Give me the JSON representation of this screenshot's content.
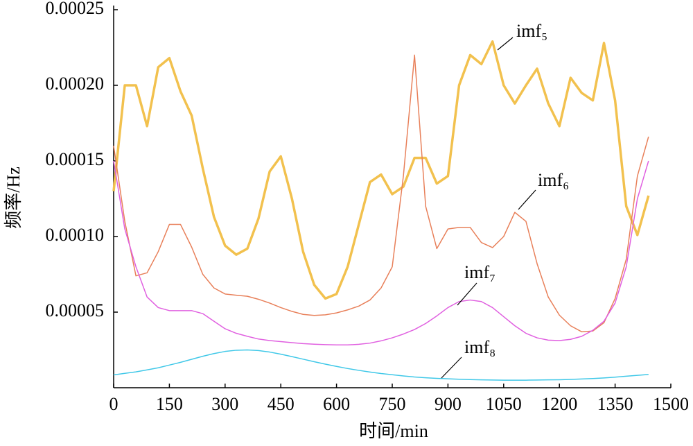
{
  "chart_data": {
    "type": "line",
    "x_label": "时间/min",
    "y_label": "频率/Hz",
    "xlim": [
      0,
      1500
    ],
    "xticks": [
      0,
      150,
      300,
      450,
      600,
      750,
      900,
      1050,
      1200,
      1350,
      1500
    ],
    "ylim": [
      0,
      0.00025
    ],
    "yticks": [
      5e-05,
      {
        "value": 0.0001,
        "label": "0.00010"
      },
      0.00015,
      {
        "value": 0.0002,
        "label": "0.00020"
      },
      0.00025
    ],
    "x": [
      0,
      30,
      60,
      90,
      120,
      150,
      180,
      210,
      240,
      270,
      300,
      330,
      360,
      390,
      420,
      450,
      480,
      510,
      540,
      570,
      600,
      630,
      660,
      690,
      720,
      750,
      780,
      810,
      840,
      870,
      900,
      930,
      960,
      990,
      1020,
      1050,
      1080,
      1110,
      1140,
      1170,
      1200,
      1230,
      1260,
      1290,
      1320,
      1350,
      1380,
      1410,
      1440
    ],
    "series": [
      {
        "name": "imf₅",
        "color": "#f2c14e",
        "values": [
          0.00013,
          0.0002,
          0.0002,
          0.000173,
          0.000212,
          0.000218,
          0.000196,
          0.00018,
          0.000145,
          0.000113,
          9.4e-05,
          8.8e-05,
          9.2e-05,
          0.000112,
          0.000143,
          0.000153,
          0.000125,
          9e-05,
          6.8e-05,
          5.9e-05,
          6.2e-05,
          8e-05,
          0.000108,
          0.000136,
          0.000141,
          0.000128,
          0.000133,
          0.000152,
          0.000152,
          0.000135,
          0.00014,
          0.0002,
          0.00022,
          0.000214,
          0.000229,
          0.0002,
          0.000188,
          0.0002,
          0.000211,
          0.000188,
          0.000173,
          0.000205,
          0.000195,
          0.00019,
          0.000228,
          0.00019,
          0.00012,
          0.000101,
          0.000127
        ]
      },
      {
        "name": "imf₆",
        "color": "#e8805a",
        "values": [
          0.00016,
          0.00011,
          7.4e-05,
          7.6e-05,
          9e-05,
          0.000108,
          0.000108,
          9.3e-05,
          7.5e-05,
          6.6e-05,
          6.2e-05,
          6.12e-05,
          6.05e-05,
          5.85e-05,
          5.6e-05,
          5.3e-05,
          5.05e-05,
          4.85e-05,
          4.78e-05,
          4.82e-05,
          4.95e-05,
          5.15e-05,
          5.4e-05,
          5.8e-05,
          6.6e-05,
          8e-05,
          0.00014,
          0.00022,
          0.00012,
          9.2e-05,
          0.000105,
          0.000106,
          0.000106,
          9.6e-05,
          9.27e-05,
          0.0001,
          0.000116,
          0.00011,
          8.2e-05,
          6e-05,
          4.8e-05,
          4.1e-05,
          3.7e-05,
          3.75e-05,
          4.3e-05,
          5.9e-05,
          8.5e-05,
          0.00014,
          0.000166
        ]
      },
      {
        "name": "imf₇",
        "color": "#e060e0",
        "values": [
          0.00015,
          0.000105,
          8e-05,
          6e-05,
          5.3e-05,
          5.1e-05,
          5.1e-05,
          5.1e-05,
          4.9e-05,
          4.4e-05,
          3.9e-05,
          3.6e-05,
          3.4e-05,
          3.22e-05,
          3.12e-05,
          3.05e-05,
          2.98e-05,
          2.92e-05,
          2.88e-05,
          2.85e-05,
          2.83e-05,
          2.83e-05,
          2.87e-05,
          2.95e-05,
          3.1e-05,
          3.3e-05,
          3.55e-05,
          3.85e-05,
          4.25e-05,
          4.75e-05,
          5.3e-05,
          5.7e-05,
          5.8e-05,
          5.7e-05,
          5.3e-05,
          4.7e-05,
          4.1e-05,
          3.6e-05,
          3.3e-05,
          3.15e-05,
          3.12e-05,
          3.2e-05,
          3.4e-05,
          3.8e-05,
          4.4e-05,
          5.6e-05,
          8e-05,
          0.000125,
          0.00015
        ]
      },
      {
        "name": "imf₈",
        "color": "#40c8e8",
        "values": [
          8.5e-06,
          9.5e-06,
          1.05e-05,
          1.18e-05,
          1.32e-05,
          1.5e-05,
          1.68e-05,
          1.88e-05,
          2.08e-05,
          2.26e-05,
          2.4e-05,
          2.48e-05,
          2.5e-05,
          2.46e-05,
          2.36e-05,
          2.22e-05,
          2.06e-05,
          1.89e-05,
          1.72e-05,
          1.56e-05,
          1.41e-05,
          1.27e-05,
          1.15e-05,
          1.04e-05,
          9.4e-06,
          8.6e-06,
          7.8e-06,
          7.1e-06,
          6.6e-06,
          6.2e-06,
          5.9e-06,
          5.6e-06,
          5.4e-06,
          5.2e-06,
          5.1e-06,
          5e-06,
          5e-06,
          5e-06,
          5.1e-06,
          5.2e-06,
          5.3e-06,
          5.5e-06,
          5.8e-06,
          6.1e-06,
          6.5e-06,
          7e-06,
          7.6e-06,
          8.2e-06,
          8.8e-06
        ]
      }
    ]
  }
}
